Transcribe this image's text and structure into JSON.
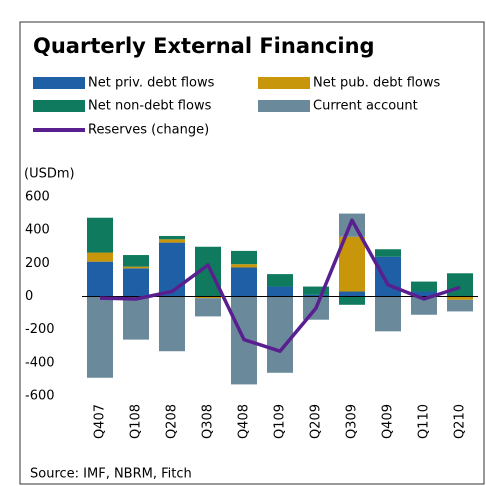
{
  "chart_data": {
    "type": "bar",
    "title": "Quarterly External Financing",
    "y_label": "(USDm)",
    "source": "Source: IMF, NBRM, Fitch",
    "stacked": true,
    "categories": [
      "Q407",
      "Q108",
      "Q208",
      "Q308",
      "Q408",
      "Q109",
      "Q209",
      "Q309",
      "Q409",
      "Q110",
      "Q210"
    ],
    "series": [
      {
        "name": "Net priv. debt flows",
        "color": "#1f5fa6",
        "values": [
          210,
          170,
          325,
          0,
          175,
          60,
          10,
          30,
          240,
          30,
          0
        ]
      },
      {
        "name": "Net pub. debt flows",
        "color": "#c8960a",
        "values": [
          55,
          10,
          20,
          -10,
          20,
          0,
          0,
          330,
          0,
          0,
          -20
        ]
      },
      {
        "name": "Net non-debt flows",
        "color": "#0f7a5e",
        "values": [
          210,
          70,
          20,
          300,
          80,
          75,
          50,
          -50,
          45,
          60,
          140
        ]
      },
      {
        "name": "Current account",
        "color": "#6a8a9c",
        "values": [
          -490,
          -260,
          -330,
          -110,
          -530,
          -460,
          -140,
          140,
          -210,
          -110,
          -70
        ]
      },
      {
        "name": "Reserves (change)",
        "color": "#5a1f8f",
        "type": "line",
        "values": [
          -10,
          -15,
          30,
          190,
          -260,
          -330,
          -70,
          460,
          70,
          -15,
          55
        ]
      }
    ],
    "ylim": [
      -600,
      600
    ],
    "yticks": [
      -600,
      -400,
      -200,
      0,
      200,
      400,
      600
    ],
    "grid": false
  }
}
